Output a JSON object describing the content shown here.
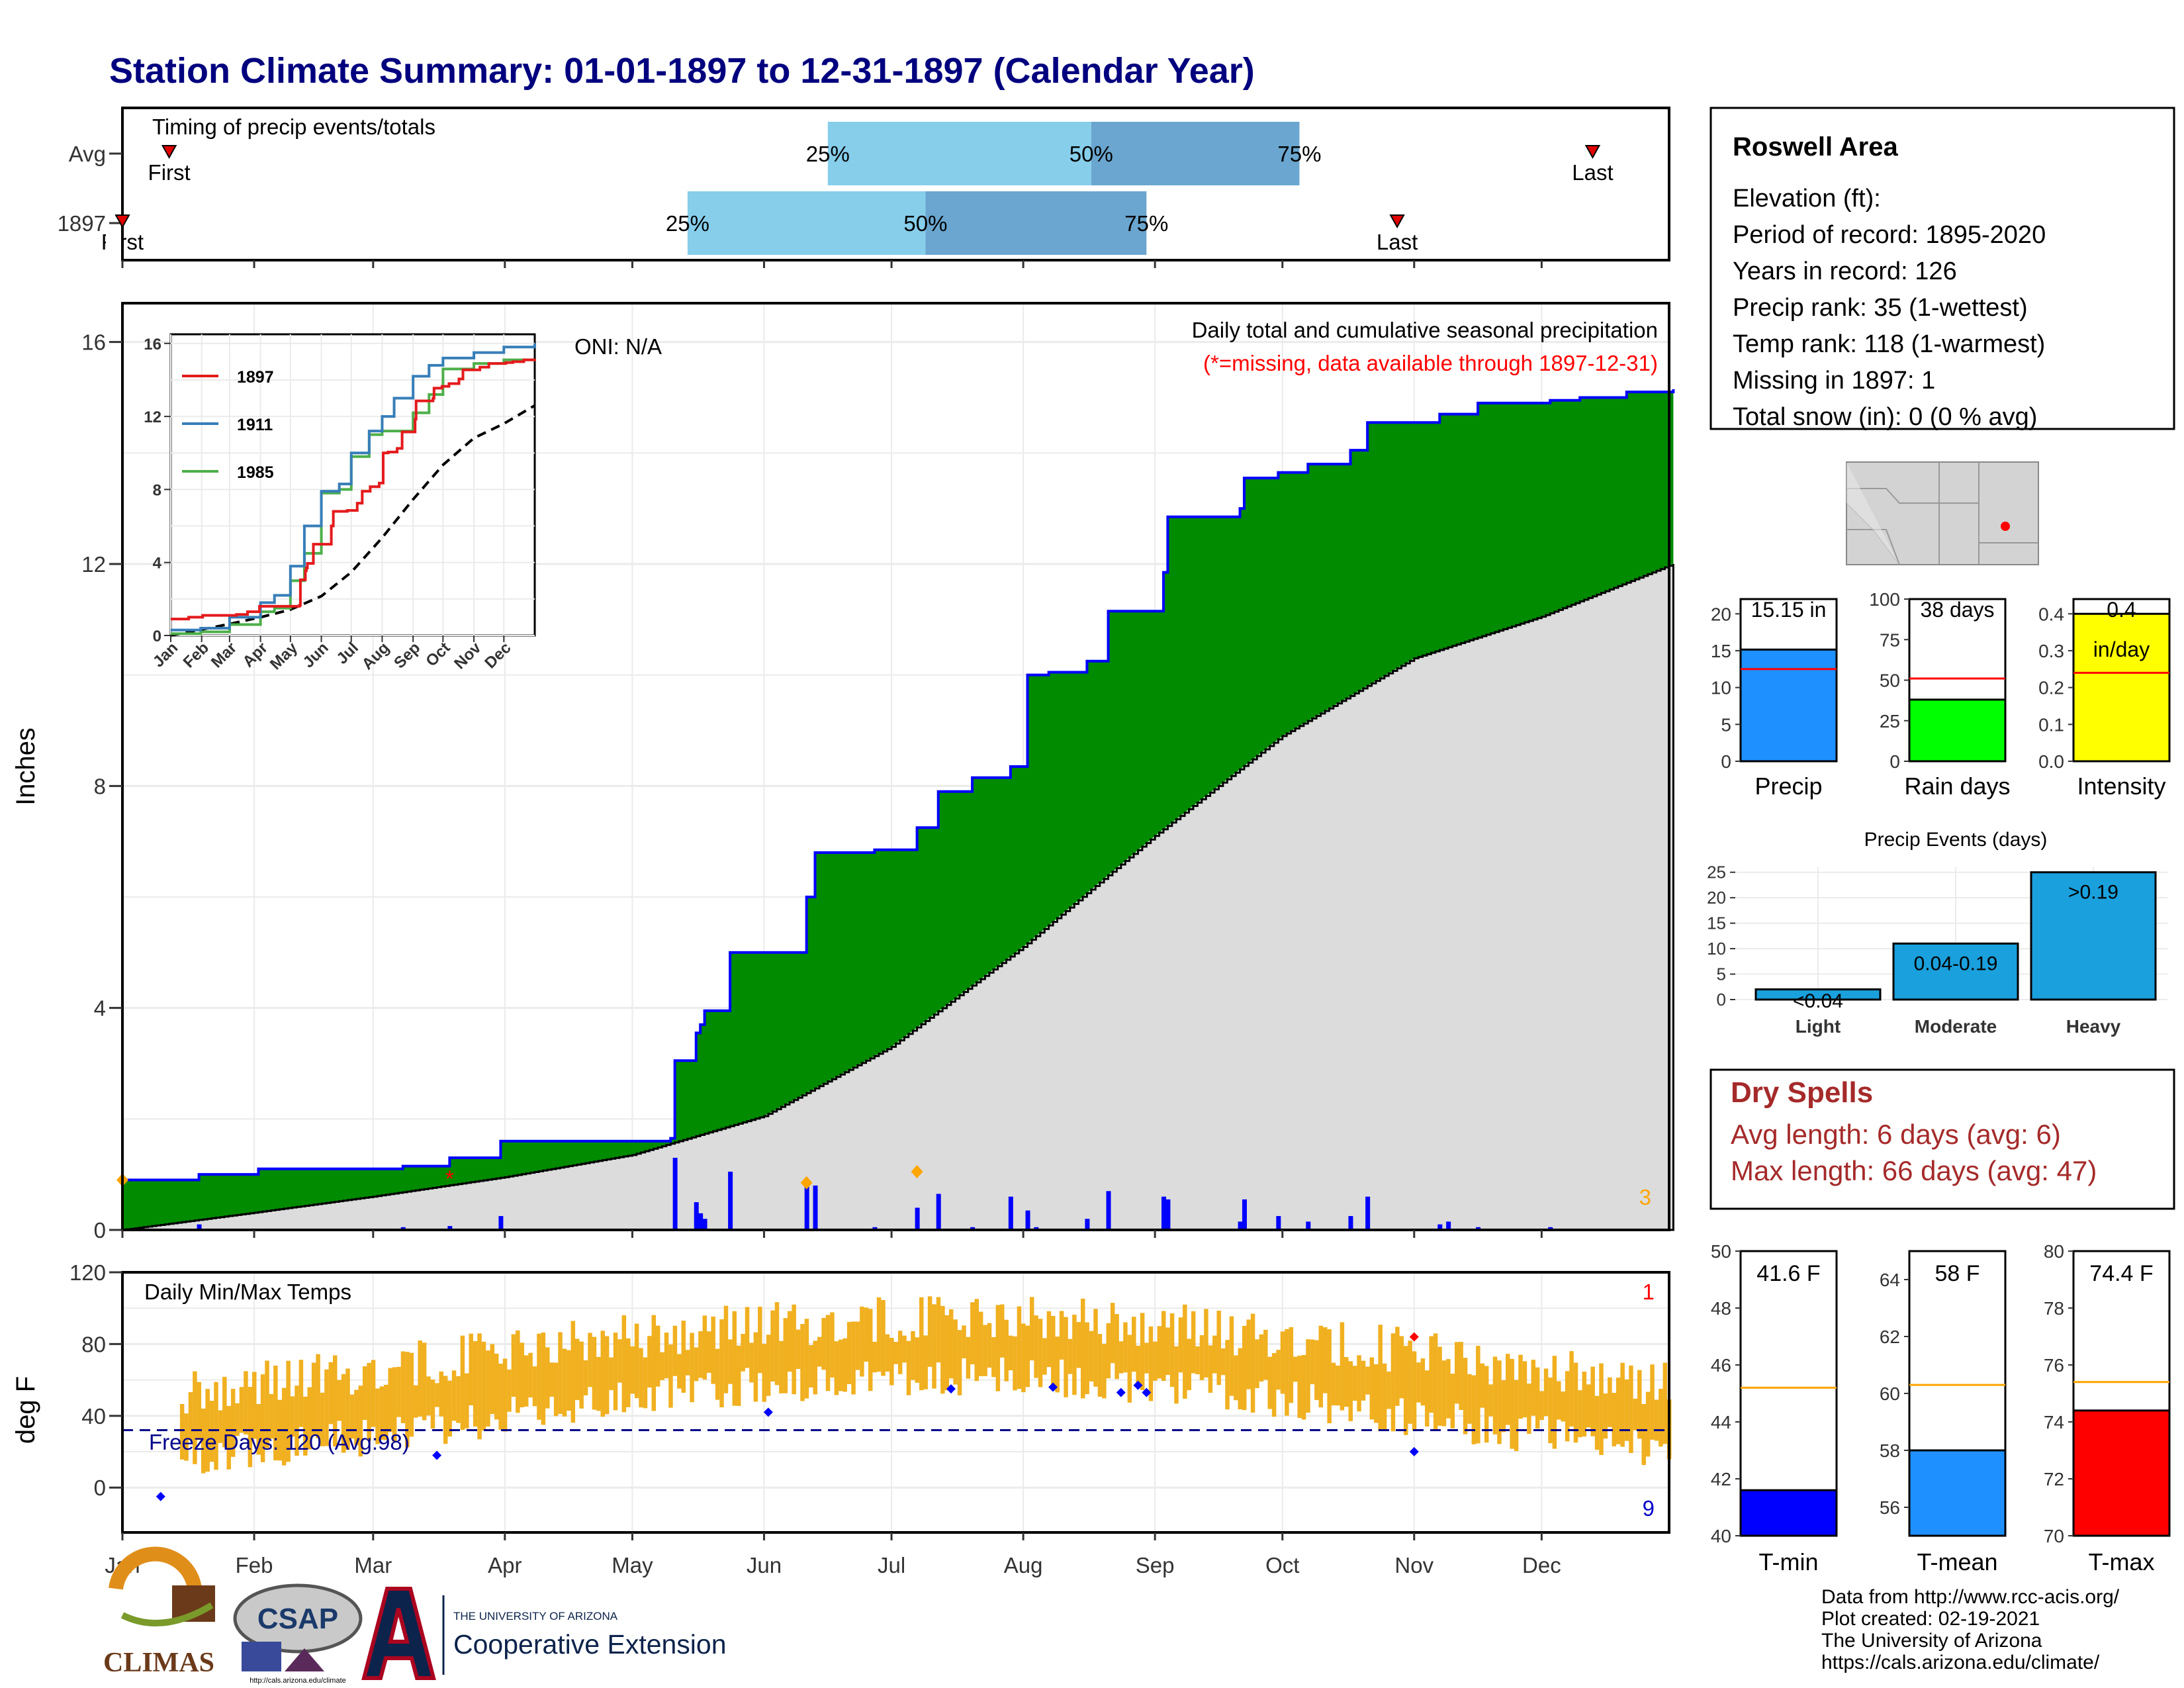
{
  "title": "Station Climate Summary: 01-01-1897 to 12-31-1897 (Calendar Year)",
  "months": [
    "Jan",
    "Feb",
    "Mar",
    "Apr",
    "May",
    "Jun",
    "Jul",
    "Aug",
    "Sep",
    "Oct",
    "Nov",
    "Dec"
  ],
  "timing": {
    "title": "Timing of precip events/totals",
    "rows": [
      {
        "label": "Avg",
        "first_doy": 12,
        "last_doy": 347,
        "p25_doy": 167,
        "p50_doy": 229,
        "p75_doy": 278,
        "first_label": "First",
        "last_label": "Last",
        "p25_label": "25%",
        "p50_label": "50%",
        "p75_label": "75%"
      },
      {
        "label": "1897",
        "first_doy": 1,
        "last_doy": 301,
        "p25_doy": 134,
        "p50_doy": 190,
        "p75_doy": 242,
        "first_label": "First",
        "last_label": "Last",
        "p25_label": "25%",
        "p50_label": "50%",
        "p75_label": "75%"
      }
    ]
  },
  "precip_panel": {
    "ylabel": "Inches",
    "yticks": [
      0,
      4,
      8,
      12,
      16
    ],
    "oni": "ONI: N/A",
    "title": "Daily total and cumulative seasonal precipitation",
    "missing_note": "(*=missing, data available through 1897-12-31)",
    "corner_count": "3",
    "cumulative_1897": [
      [
        1,
        0.9
      ],
      [
        19,
        1.0
      ],
      [
        33,
        1.1
      ],
      [
        67,
        1.15
      ],
      [
        78,
        1.3
      ],
      [
        90,
        1.6
      ],
      [
        130,
        1.65
      ],
      [
        131,
        3.05
      ],
      [
        136,
        3.55
      ],
      [
        137,
        3.7
      ],
      [
        138,
        3.95
      ],
      [
        144,
        5.0
      ],
      [
        162,
        6.0
      ],
      [
        164,
        6.8
      ],
      [
        178,
        6.85
      ],
      [
        188,
        7.25
      ],
      [
        193,
        7.9
      ],
      [
        201,
        8.15
      ],
      [
        210,
        8.35
      ],
      [
        214,
        10.0
      ],
      [
        219,
        10.05
      ],
      [
        228,
        10.25
      ],
      [
        233,
        11.15
      ],
      [
        246,
        11.85
      ],
      [
        247,
        12.85
      ],
      [
        264,
        13.0
      ],
      [
        265,
        13.55
      ],
      [
        273,
        13.65
      ],
      [
        280,
        13.8
      ],
      [
        290,
        14.05
      ],
      [
        294,
        14.55
      ],
      [
        311,
        14.7
      ],
      [
        320,
        14.9
      ],
      [
        337,
        14.95
      ],
      [
        344,
        15.0
      ],
      [
        355,
        15.1
      ],
      [
        366,
        15.15
      ]
    ],
    "average_cumulative": [
      [
        1,
        0
      ],
      [
        31,
        0.3
      ],
      [
        60,
        0.6
      ],
      [
        91,
        0.95
      ],
      [
        121,
        1.35
      ],
      [
        152,
        2.05
      ],
      [
        182,
        3.3
      ],
      [
        213,
        5.1
      ],
      [
        244,
        7.1
      ],
      [
        274,
        8.9
      ],
      [
        305,
        10.3
      ],
      [
        335,
        11.05
      ],
      [
        366,
        12.0
      ]
    ],
    "daily_bars": [
      [
        1,
        0.02
      ],
      [
        19,
        0.1
      ],
      [
        67,
        0.05
      ],
      [
        78,
        0.07
      ],
      [
        90,
        0.25
      ],
      [
        131,
        1.3
      ],
      [
        136,
        0.5
      ],
      [
        137,
        0.3
      ],
      [
        138,
        0.2
      ],
      [
        144,
        1.05
      ],
      [
        162,
        0.9
      ],
      [
        164,
        0.8
      ],
      [
        178,
        0.05
      ],
      [
        188,
        0.4
      ],
      [
        193,
        0.65
      ],
      [
        201,
        0.05
      ],
      [
        210,
        0.6
      ],
      [
        214,
        0.35
      ],
      [
        216,
        0.05
      ],
      [
        228,
        0.2
      ],
      [
        233,
        0.7
      ],
      [
        246,
        0.6
      ],
      [
        247,
        0.55
      ],
      [
        264,
        0.15
      ],
      [
        265,
        0.55
      ],
      [
        273,
        0.25
      ],
      [
        280,
        0.15
      ],
      [
        290,
        0.25
      ],
      [
        294,
        0.6
      ],
      [
        311,
        0.1
      ],
      [
        313,
        0.15
      ],
      [
        320,
        0.05
      ],
      [
        337,
        0.05
      ]
    ],
    "missing_marks": [
      [
        78,
        1.0
      ]
    ],
    "top_days": [
      [
        1,
        0.9
      ],
      [
        162,
        0.85
      ],
      [
        188,
        1.05
      ]
    ]
  },
  "inset": {
    "series": [
      {
        "name": "1897",
        "color": "#e41a1c"
      },
      {
        "name": "1911",
        "color": "#377eb8"
      },
      {
        "name": "1985",
        "color": "#4daf4a"
      }
    ],
    "yticks": [
      0,
      4,
      8,
      12,
      16
    ],
    "months": [
      "Jan",
      "Feb",
      "Mar",
      "Apr",
      "May",
      "Jun",
      "Jul",
      "Aug",
      "Sep",
      "Oct",
      "Nov",
      "Dec"
    ],
    "s1911": [
      [
        1,
        0.3
      ],
      [
        31,
        0.4
      ],
      [
        60,
        1.0
      ],
      [
        91,
        1.8
      ],
      [
        105,
        2.2
      ],
      [
        121,
        3.8
      ],
      [
        135,
        6.0
      ],
      [
        152,
        7.9
      ],
      [
        170,
        8.3
      ],
      [
        182,
        10.0
      ],
      [
        200,
        11.2
      ],
      [
        213,
        12.0
      ],
      [
        225,
        13.0
      ],
      [
        244,
        14.2
      ],
      [
        260,
        14.8
      ],
      [
        274,
        15.2
      ],
      [
        305,
        15.5
      ],
      [
        335,
        15.8
      ],
      [
        366,
        16.0
      ]
    ],
    "s1985": [
      [
        1,
        0.1
      ],
      [
        31,
        0.2
      ],
      [
        60,
        0.6
      ],
      [
        91,
        1.3
      ],
      [
        105,
        1.5
      ],
      [
        121,
        3.0
      ],
      [
        135,
        4.5
      ],
      [
        152,
        7.8
      ],
      [
        170,
        8.0
      ],
      [
        182,
        9.8
      ],
      [
        200,
        11.0
      ],
      [
        213,
        11.2
      ],
      [
        244,
        12.2
      ],
      [
        260,
        13.2
      ],
      [
        274,
        14.6
      ],
      [
        305,
        14.9
      ],
      [
        335,
        15.1
      ],
      [
        366,
        15.15
      ]
    ]
  },
  "temp_panel": {
    "ylabel": "deg F",
    "yticks": [
      0,
      40,
      80,
      120
    ],
    "title": "Daily Min/Max Temps",
    "freeze": "Freeze Days: 120 (Avg:98)",
    "freeze_line": 32,
    "count_top": "1",
    "count_bottom": "9"
  },
  "info": {
    "station": "Roswell Area",
    "lines": [
      "Elevation (ft):",
      "Period of record: 1895-2020",
      "Years in record: 126",
      "Precip rank: 35 (1-wettest)",
      "Temp rank: 118 (1-warmest)",
      "Missing in 1897: 1",
      "Total snow (in): 0 (0 % avg)"
    ]
  },
  "mini_bars": [
    {
      "name": "Precip",
      "value": 15.15,
      "avg": 12.5,
      "label": "15.15 in",
      "max": 22,
      "yticks": [
        0,
        5,
        10,
        15,
        20
      ],
      "color": "#1e90ff"
    },
    {
      "name": "Rain days",
      "value": 38,
      "avg": 51,
      "label": "38 days",
      "max": 100,
      "yticks": [
        0,
        25,
        50,
        75,
        100
      ],
      "color": "#00ff00"
    },
    {
      "name": "Intensity",
      "value": 0.4,
      "avg": 0.24,
      "label": "0.4",
      "label2": "in/day",
      "max": 0.44,
      "yticks": [
        "0.0",
        "0.1",
        "0.2",
        "0.3",
        "0.4"
      ],
      "color": "#ffff00"
    }
  ],
  "events": {
    "title": "Precip Events (days)",
    "categories": [
      "Light",
      "Moderate",
      "Heavy"
    ],
    "values": [
      2,
      11,
      25
    ],
    "labels": [
      "<0.04",
      "0.04-0.19",
      ">0.19"
    ],
    "yticks": [
      0,
      5,
      10,
      15,
      20,
      25
    ]
  },
  "dry_spells": {
    "title": "Dry Spells",
    "avg": "Avg length: 6 days (avg: 6)",
    "max": "Max length: 66 days (avg: 47)"
  },
  "temp_bars": [
    {
      "name": "T-min",
      "value": 41.6,
      "label": "41.6 F",
      "avg": 45.2,
      "min": 40,
      "max": 50,
      "yticks": [
        40,
        42,
        44,
        46,
        48,
        50
      ],
      "color": "#0000ff"
    },
    {
      "name": "T-mean",
      "value": 58,
      "label": "58 F",
      "avg": 60.3,
      "min": 55,
      "max": 65,
      "yticks": [
        56,
        58,
        60,
        62,
        64
      ],
      "color": "#1e90ff"
    },
    {
      "name": "T-max",
      "value": 74.4,
      "label": "74.4 F",
      "avg": 75.4,
      "min": 70,
      "max": 80,
      "yticks": [
        70,
        72,
        74,
        76,
        78,
        80
      ],
      "color": "#ff0000"
    }
  ],
  "credits": [
    "Data from http://www.rcc-acis.org/",
    "Plot created: 02-19-2021",
    "The University of Arizona",
    "https://cals.arizona.edu/climate/"
  ],
  "logos": {
    "climas": "CLIMAS",
    "csap": "CSAP",
    "csap_url": "http://cals.arizona.edu/climate",
    "ua_small": "THE UNIVERSITY OF ARIZONA",
    "ua_big": "Cooperative Extension"
  }
}
